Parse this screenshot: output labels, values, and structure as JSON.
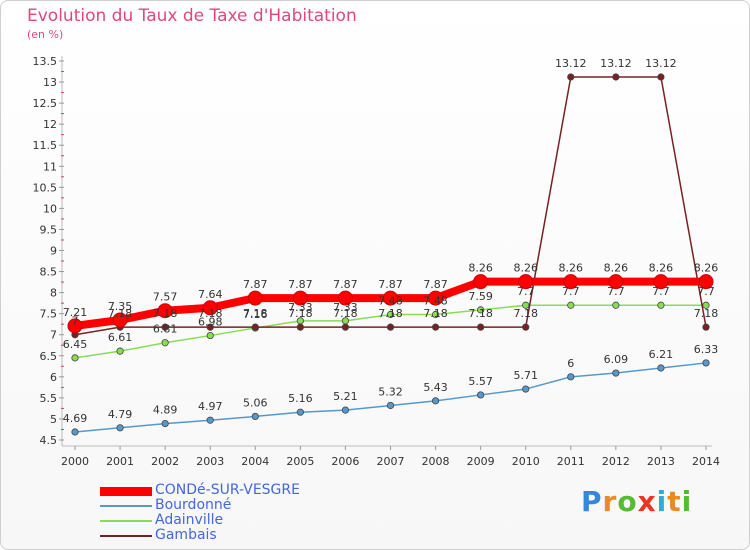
{
  "chart_data": {
    "type": "line",
    "title": "Evolution du Taux de Taxe d'Habitation",
    "subtitle": "(en %)",
    "x": [
      2000,
      2001,
      2002,
      2003,
      2004,
      2005,
      2006,
      2007,
      2008,
      2009,
      2010,
      2011,
      2012,
      2013,
      2014
    ],
    "ylim": [
      4.5,
      13.5
    ],
    "yticks": [
      4.5,
      5,
      5.5,
      6,
      6.5,
      7,
      7.5,
      8,
      8.5,
      9,
      9.5,
      10,
      10.5,
      11,
      11.5,
      12,
      12.5,
      13,
      13.5
    ],
    "grid": false,
    "legend_position": "bottom-left",
    "series": [
      {
        "name": "CONDé-SUR-VESGRE",
        "color": "#ff0000",
        "values": [
          7.21,
          7.35,
          7.57,
          7.64,
          7.87,
          7.87,
          7.87,
          7.87,
          7.87,
          8.26,
          8.26,
          8.26,
          8.26,
          8.26,
          8.26
        ],
        "labels": [
          "7.21",
          "7.35",
          "7.57",
          "7.64",
          "7.87",
          "7.87",
          "7.87",
          "7.87",
          "7.87",
          "8.26",
          "8.26",
          "8.26",
          "8.26",
          "8.26",
          "8.26"
        ]
      },
      {
        "name": "Bourdonné",
        "color": "#5599cc",
        "values": [
          4.69,
          4.79,
          4.89,
          4.97,
          5.06,
          5.16,
          5.21,
          5.32,
          5.43,
          5.57,
          5.71,
          6.0,
          6.09,
          6.21,
          6.33
        ],
        "labels": [
          "4.69",
          "4.79",
          "4.89",
          "4.97",
          "5.06",
          "5.16",
          "5.21",
          "5.32",
          "5.43",
          "5.57",
          "5.71",
          "6",
          "6.09",
          "6.21",
          "6.33"
        ]
      },
      {
        "name": "Adainville",
        "color": "#88dd55",
        "values": [
          6.45,
          6.61,
          6.81,
          6.98,
          7.16,
          7.33,
          7.33,
          7.48,
          7.48,
          7.59,
          7.7,
          7.7,
          7.7,
          7.7,
          7.7
        ],
        "labels": [
          "6.45",
          "6.61",
          "6.81",
          "6.98",
          "7.16",
          "7.33",
          "7.33",
          "7.48",
          "7.48",
          "7.59",
          "7.7",
          "7.7",
          "7.7",
          "7.7",
          "7.7"
        ]
      },
      {
        "name": "Gambais",
        "color": "#772222",
        "values": [
          7.0,
          7.18,
          7.18,
          7.18,
          7.18,
          7.18,
          7.18,
          7.18,
          7.18,
          7.18,
          7.18,
          13.12,
          13.12,
          13.12,
          7.18
        ],
        "labels": [
          "7",
          "7.18",
          "7.18",
          "7.18",
          "7.18",
          "7.18",
          "7.18",
          "7.18",
          "7.18",
          "7.18",
          "7.18",
          "13.12",
          "13.12",
          "13.12",
          "7.18"
        ]
      }
    ]
  },
  "logo": {
    "letters": [
      "P",
      "r",
      "o",
      "x",
      "i",
      "t",
      "i"
    ],
    "colors": [
      "#3388dd",
      "#ee8822",
      "#55bb33",
      "#ee3322",
      "#33aadd",
      "#ee8822",
      "#55bb33"
    ]
  }
}
